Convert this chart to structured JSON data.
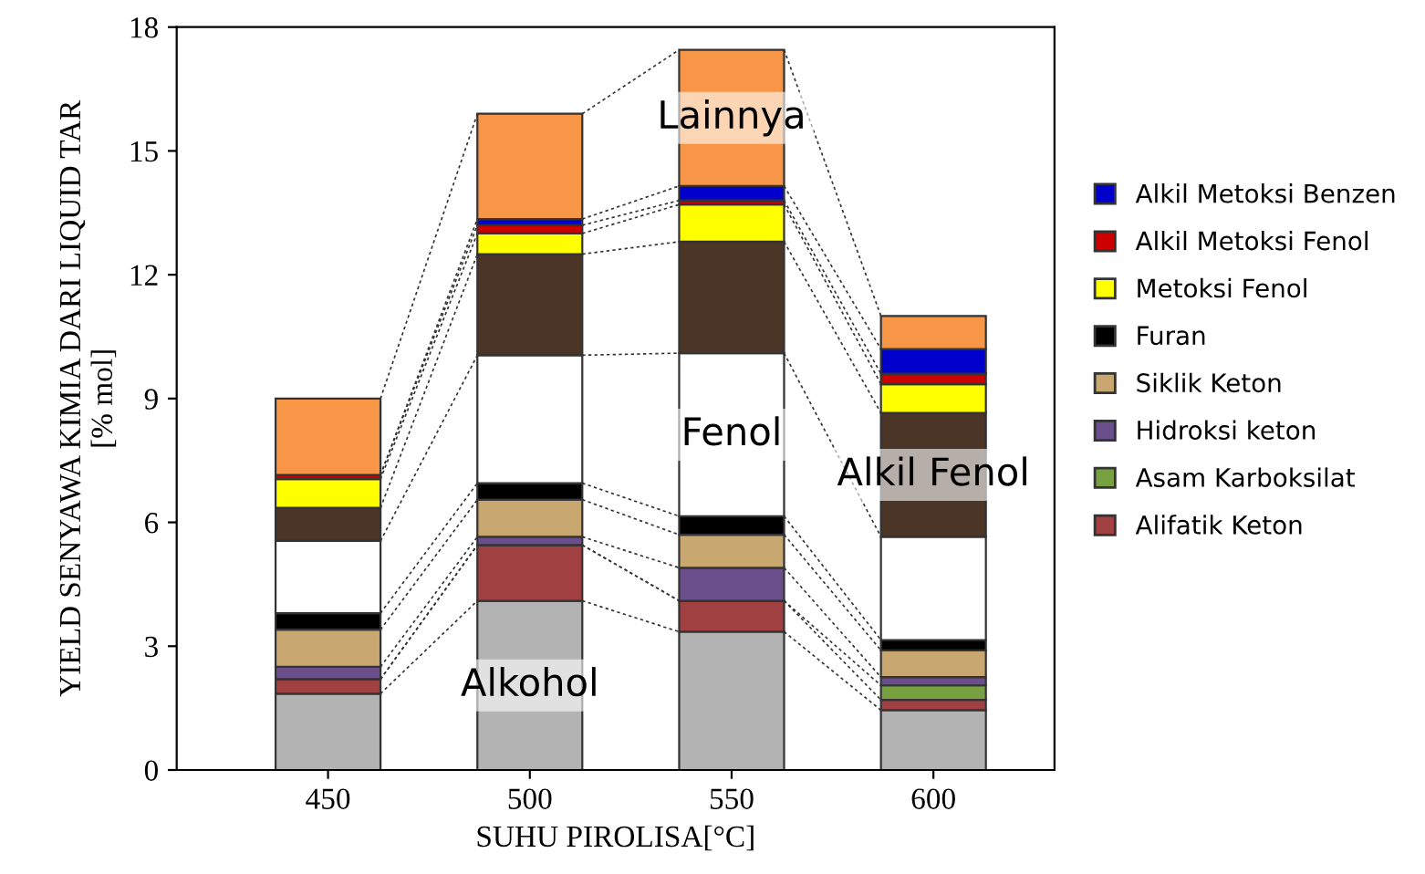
{
  "chart_data": {
    "type": "bar",
    "stacked": true,
    "xlabel": "SUHU PIROLISA[°C]",
    "ylabel": "YIELD SENYAWA KIMIA DARI LIQUID TAR\n[% mol]",
    "categories": [
      "450",
      "500",
      "550",
      "600"
    ],
    "ylim": [
      0,
      18
    ],
    "yticks": [
      0,
      3,
      6,
      9,
      12,
      15,
      18
    ],
    "grid": false,
    "legend": "right",
    "series": [
      {
        "name": "Alkohol",
        "color": "#b3b3b3",
        "values": [
          1.85,
          4.1,
          3.35,
          1.45
        ]
      },
      {
        "name": "Alifatik Keton",
        "color": "#a04040",
        "values": [
          0.35,
          1.35,
          0.75,
          0.25
        ]
      },
      {
        "name": "Asam Karboksilat",
        "color": "#77a040",
        "values": [
          0,
          0,
          0,
          0.35
        ]
      },
      {
        "name": "Hidroksi keton",
        "color": "#6a4f8c",
        "values": [
          0.3,
          0.2,
          0.8,
          0.2
        ]
      },
      {
        "name": "Siklik Keton",
        "color": "#c8a870",
        "values": [
          0.9,
          0.9,
          0.8,
          0.65
        ]
      },
      {
        "name": "Furan",
        "color": "#000000",
        "values": [
          0.4,
          0.4,
          0.45,
          0.25
        ]
      },
      {
        "name": "Fenol",
        "color": "#ffffff",
        "values": [
          1.75,
          3.1,
          3.95,
          2.5
        ]
      },
      {
        "name": "Alkil Fenol",
        "color": "#4a3526",
        "values": [
          0.8,
          2.45,
          2.7,
          3.0
        ]
      },
      {
        "name": "Metoksi Fenol",
        "color": "#ffff00",
        "values": [
          0.7,
          0.5,
          0.9,
          0.7
        ]
      },
      {
        "name": "Alkil Metoksi Fenol",
        "color": "#cc0000",
        "values": [
          0.1,
          0.2,
          0.1,
          0.25
        ]
      },
      {
        "name": "Alkil Metoksi Benzen",
        "color": "#0000cc",
        "values": [
          0,
          0.15,
          0.35,
          0.6
        ]
      },
      {
        "name": "Lainnya",
        "color": "#f79646",
        "values": [
          1.85,
          2.55,
          3.3,
          0.8
        ]
      }
    ]
  }
}
